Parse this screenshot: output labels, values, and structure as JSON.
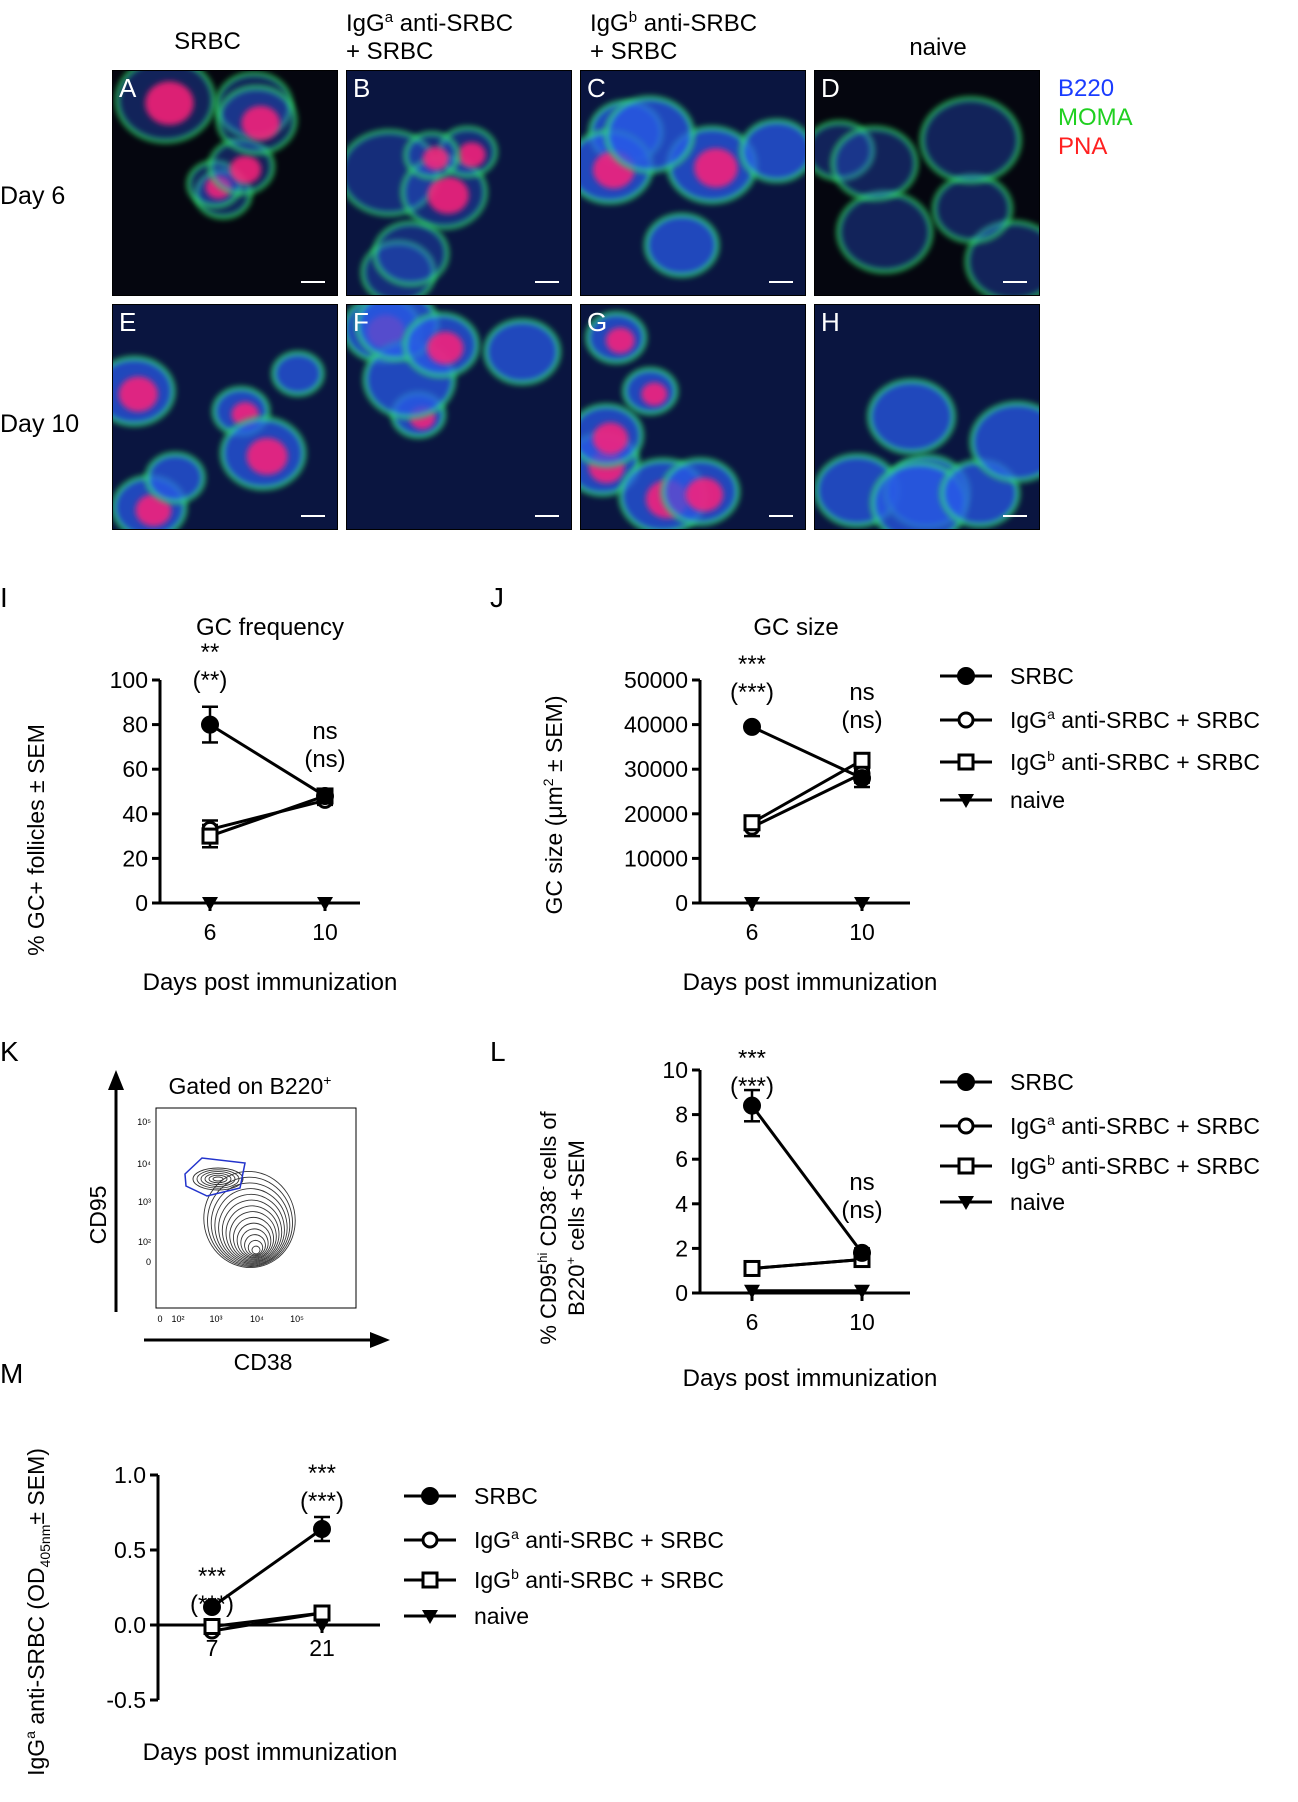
{
  "columns": {
    "c1": {
      "line1": "SRBC"
    },
    "c2": {
      "line1_pre": "IgG",
      "line1_sup": "a",
      "line1_post": " anti-SRBC",
      "line2": "+ SRBC"
    },
    "c3": {
      "line1_pre": "IgG",
      "line1_sup": "b",
      "line1_post": " anti-SRBC",
      "line2": "+ SRBC"
    },
    "c4": {
      "line1": "naive"
    }
  },
  "rows": {
    "r1": "Day 6",
    "r2": "Day 10"
  },
  "stains": {
    "s1": "B220",
    "s2": "MOMA",
    "s3": "PNA",
    "c1": "#1a3cff",
    "c2": "#20d020",
    "c3": "#ff2020"
  },
  "micro_panels": [
    "A",
    "B",
    "C",
    "D",
    "E",
    "F",
    "G",
    "H"
  ],
  "panel_letters": {
    "I": "I",
    "J": "J",
    "K": "K",
    "L": "L",
    "M": "M"
  },
  "legend": {
    "srbc": "SRBC",
    "iga": {
      "pre": "IgG",
      "sup": "a",
      "post": " anti-SRBC + SRBC"
    },
    "igb": {
      "pre": "IgG",
      "sup": "b",
      "post": " anti-SRBC + SRBC"
    },
    "naive": "naive"
  },
  "chart_I": {
    "title": "GC frequency",
    "ylabel": "% GC+ follicles ± SEM",
    "xlabel": "Days post immunization",
    "yticks": [
      "0",
      "20",
      "40",
      "60",
      "80",
      "100"
    ],
    "xticks": [
      "6",
      "10"
    ],
    "annot_d6": [
      "**",
      "(**)"
    ],
    "annot_d10": [
      "ns",
      "(ns)"
    ]
  },
  "chart_J": {
    "title": "GC size",
    "ylabel_pre": "GC size (μm",
    "ylabel_sup": "2",
    "ylabel_post": " ± SEM)",
    "xlabel": "Days post immunization",
    "yticks": [
      "0",
      "10000",
      "20000",
      "30000",
      "40000",
      "50000"
    ],
    "xticks": [
      "6",
      "10"
    ],
    "annot_d6": [
      "***",
      "(***)"
    ],
    "annot_d10": [
      "ns",
      "(ns)"
    ]
  },
  "chart_K": {
    "title_pre": "Gated on B220",
    "title_sup": "+",
    "ylabel": "CD95",
    "xlabel": "CD38",
    "yticks": [
      "10⁵",
      "10⁴",
      "10³",
      "10²",
      "0"
    ],
    "xticks": [
      "0",
      "10²",
      "10³",
      "10⁴",
      "10⁵"
    ]
  },
  "chart_L": {
    "ylabel1_pre": "% CD95",
    "ylabel1_sup": "hi",
    "ylabel1_mid": " CD38",
    "ylabel1_sup2": "-",
    "ylabel1_post": " cells of",
    "ylabel2_pre": "B220",
    "ylabel2_sup": "+",
    "ylabel2_post": " cells +SEM",
    "xlabel": "Days post immunization",
    "yticks": [
      "0",
      "2",
      "4",
      "6",
      "8",
      "10"
    ],
    "xticks": [
      "6",
      "10"
    ],
    "annot_d6": [
      "***",
      "(***)"
    ],
    "annot_d10": [
      "ns",
      "(ns)"
    ]
  },
  "chart_M": {
    "ylabel_pre": "IgG",
    "ylabel_sup": "a",
    "ylabel_mid": " anti-SRBC (OD",
    "ylabel_sub": "405nm",
    "ylabel_post": "± SEM)",
    "xlabel": "Days post immunization",
    "yticks": [
      "-0.5",
      "0.0",
      "0.5",
      "1.0"
    ],
    "xticks": [
      "7",
      "21"
    ],
    "annot_d7": [
      "***",
      "(***)"
    ],
    "annot_d21": [
      "***",
      "(***)"
    ]
  },
  "chart_data": [
    {
      "type": "line",
      "panel": "I",
      "title": "GC frequency",
      "xlabel": "Days post immunization",
      "ylabel": "% GC+ follicles ± SEM",
      "x": [
        6,
        10
      ],
      "ylim": [
        0,
        100
      ],
      "series": [
        {
          "name": "SRBC",
          "values": [
            80,
            48
          ],
          "err": [
            8,
            2
          ]
        },
        {
          "name": "IgGa anti-SRBC + SRBC",
          "values": [
            33,
            46
          ],
          "err": [
            4,
            2
          ]
        },
        {
          "name": "IgGb anti-SRBC + SRBC",
          "values": [
            30,
            48
          ],
          "err": [
            5,
            2
          ]
        },
        {
          "name": "naive",
          "values": [
            0,
            0
          ],
          "err": [
            0,
            0
          ]
        }
      ]
    },
    {
      "type": "line",
      "panel": "J",
      "title": "GC size",
      "xlabel": "Days post immunization",
      "ylabel": "GC size (μm2 ± SEM)",
      "x": [
        6,
        10
      ],
      "ylim": [
        0,
        50000
      ],
      "series": [
        {
          "name": "SRBC",
          "values": [
            39500,
            28000
          ],
          "err": [
            0,
            2000
          ]
        },
        {
          "name": "IgGa anti-SRBC + SRBC",
          "values": [
            17000,
            29000
          ],
          "err": [
            2000,
            2000
          ]
        },
        {
          "name": "IgGb anti-SRBC + SRBC",
          "values": [
            18000,
            32000
          ],
          "err": [
            1000,
            1000
          ]
        },
        {
          "name": "naive",
          "values": [
            0,
            0
          ],
          "err": [
            0,
            0
          ]
        }
      ]
    },
    {
      "type": "line",
      "panel": "L",
      "xlabel": "Days post immunization",
      "ylabel": "% CD95hi CD38- cells of B220+ cells +SEM",
      "x": [
        6,
        10
      ],
      "ylim": [
        0,
        10
      ],
      "series": [
        {
          "name": "SRBC",
          "values": [
            8.4,
            1.8
          ],
          "err": [
            0.7,
            0.2
          ]
        },
        {
          "name": "IgGa anti-SRBC + SRBC",
          "values": [
            1.1,
            1.5
          ],
          "err": [
            0.1,
            0.2
          ]
        },
        {
          "name": "IgGb anti-SRBC + SRBC",
          "values": [
            1.1,
            1.5
          ],
          "err": [
            0.1,
            0.2
          ]
        },
        {
          "name": "naive",
          "values": [
            0.1,
            0.1
          ],
          "err": [
            0,
            0
          ]
        }
      ]
    },
    {
      "type": "line",
      "panel": "M",
      "xlabel": "Days post immunization",
      "ylabel": "IgGa anti-SRBC (OD405nm± SEM)",
      "x": [
        7,
        21
      ],
      "ylim": [
        -0.5,
        1.0
      ],
      "series": [
        {
          "name": "SRBC",
          "values": [
            0.12,
            0.64
          ],
          "err": [
            0.02,
            0.08
          ]
        },
        {
          "name": "IgGa anti-SRBC + SRBC",
          "values": [
            -0.04,
            0.08
          ],
          "err": [
            0.01,
            0.02
          ]
        },
        {
          "name": "IgGb anti-SRBC + SRBC",
          "values": [
            -0.01,
            0.08
          ],
          "err": [
            0.01,
            0.02
          ]
        },
        {
          "name": "naive",
          "values": [
            0,
            0
          ],
          "err": [
            0,
            0
          ]
        }
      ]
    }
  ]
}
